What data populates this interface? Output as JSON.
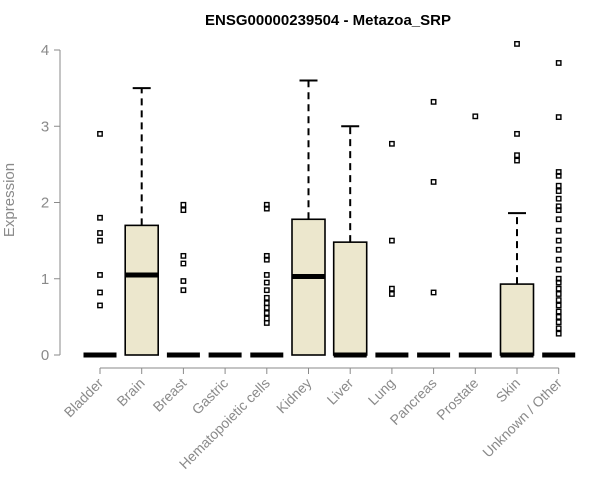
{
  "chart_data": {
    "type": "boxplot",
    "title": "ENSG00000239504 - Metazoa_SRP",
    "xlabel": "",
    "ylabel": "Expression",
    "ylim": [
      0,
      4.1
    ],
    "yticks": [
      0,
      1,
      2,
      3,
      4
    ],
    "categories": [
      "Bladder",
      "Brain",
      "Breast",
      "Gastric",
      "Hematopoietic cells",
      "Kidney",
      "Liver",
      "Lung",
      "Pancreas",
      "Prostate",
      "Skin",
      "Unknown / Other"
    ],
    "boxes": [
      {
        "name": "Bladder",
        "q1": 0,
        "median": 0,
        "q3": 0,
        "whisker_low": 0,
        "whisker_high": 0,
        "outliers": [
          2.9,
          1.8,
          1.6,
          1.5,
          1.05,
          0.82,
          0.65
        ]
      },
      {
        "name": "Brain",
        "q1": 0,
        "median": 1.05,
        "q3": 1.7,
        "whisker_low": 0,
        "whisker_high": 3.5,
        "outliers": []
      },
      {
        "name": "Breast",
        "q1": 0,
        "median": 0,
        "q3": 0,
        "whisker_low": 0,
        "whisker_high": 0,
        "outliers": [
          1.97,
          1.9,
          1.3,
          1.2,
          0.97,
          0.85
        ]
      },
      {
        "name": "Gastric",
        "q1": 0,
        "median": 0,
        "q3": 0,
        "whisker_low": 0,
        "whisker_high": 0,
        "outliers": []
      },
      {
        "name": "Hematopoietic cells",
        "q1": 0,
        "median": 0,
        "q3": 0,
        "whisker_low": 0,
        "whisker_high": 0,
        "outliers": [
          1.97,
          1.92,
          1.3,
          1.25,
          1.05,
          0.95,
          0.85,
          0.75,
          0.68,
          0.62,
          0.55,
          0.48,
          0.42
        ]
      },
      {
        "name": "Kidney",
        "q1": 0,
        "median": 1.03,
        "q3": 1.78,
        "whisker_low": 0,
        "whisker_high": 3.6,
        "outliers": []
      },
      {
        "name": "Liver",
        "q1": 0,
        "median": 0,
        "q3": 1.48,
        "whisker_low": 0,
        "whisker_high": 3.0,
        "outliers": []
      },
      {
        "name": "Lung",
        "q1": 0,
        "median": 0,
        "q3": 0,
        "whisker_low": 0,
        "whisker_high": 0,
        "outliers": [
          2.77,
          1.5,
          0.87,
          0.8
        ]
      },
      {
        "name": "Pancreas",
        "q1": 0,
        "median": 0,
        "q3": 0,
        "whisker_low": 0,
        "whisker_high": 0,
        "outliers": [
          3.32,
          2.27,
          0.82
        ]
      },
      {
        "name": "Prostate",
        "q1": 0,
        "median": 0,
        "q3": 0,
        "whisker_low": 0,
        "whisker_high": 0,
        "outliers": [
          3.13
        ]
      },
      {
        "name": "Skin",
        "q1": 0,
        "median": 0,
        "q3": 0.93,
        "whisker_low": 0,
        "whisker_high": 1.86,
        "outliers": [
          4.08,
          2.9,
          2.62,
          2.55
        ]
      },
      {
        "name": "Unknown / Other",
        "q1": 0,
        "median": 0,
        "q3": 0,
        "whisker_low": 0,
        "whisker_high": 0,
        "outliers": [
          3.83,
          3.12,
          2.4,
          2.35,
          2.22,
          2.15,
          2.05,
          1.95,
          1.9,
          1.78,
          1.63,
          1.5,
          1.38,
          1.25,
          1.12,
          1.0,
          0.95,
          0.87,
          0.8,
          0.72,
          0.65,
          0.57,
          0.5,
          0.43,
          0.35,
          0.28
        ]
      }
    ],
    "colors": {
      "box_fill": "#ece7cd",
      "box_stroke": "#000000",
      "axis": "#8a8a8a"
    }
  }
}
